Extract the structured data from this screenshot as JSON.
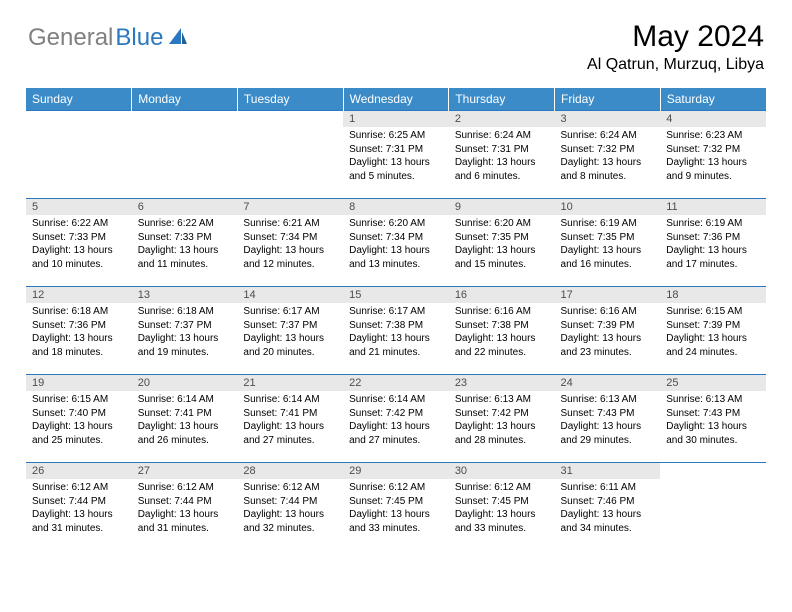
{
  "logo": {
    "gray": "General",
    "blue": "Blue"
  },
  "title": "May 2024",
  "location": "Al Qatrun, Murzuq, Libya",
  "colors": {
    "header_bg": "#3b8bc9",
    "border": "#2a78bf",
    "daynum_bg": "#e8e8e8",
    "logo_gray": "#808080",
    "logo_blue": "#2a78bf"
  },
  "weekdays": [
    "Sunday",
    "Monday",
    "Tuesday",
    "Wednesday",
    "Thursday",
    "Friday",
    "Saturday"
  ],
  "weeks": [
    [
      {
        "n": "",
        "sr": "",
        "ss": "",
        "dl": "",
        "empty": true
      },
      {
        "n": "",
        "sr": "",
        "ss": "",
        "dl": "",
        "empty": true
      },
      {
        "n": "",
        "sr": "",
        "ss": "",
        "dl": "",
        "empty": true
      },
      {
        "n": "1",
        "sr": "Sunrise: 6:25 AM",
        "ss": "Sunset: 7:31 PM",
        "dl": "Daylight: 13 hours and 5 minutes."
      },
      {
        "n": "2",
        "sr": "Sunrise: 6:24 AM",
        "ss": "Sunset: 7:31 PM",
        "dl": "Daylight: 13 hours and 6 minutes."
      },
      {
        "n": "3",
        "sr": "Sunrise: 6:24 AM",
        "ss": "Sunset: 7:32 PM",
        "dl": "Daylight: 13 hours and 8 minutes."
      },
      {
        "n": "4",
        "sr": "Sunrise: 6:23 AM",
        "ss": "Sunset: 7:32 PM",
        "dl": "Daylight: 13 hours and 9 minutes."
      }
    ],
    [
      {
        "n": "5",
        "sr": "Sunrise: 6:22 AM",
        "ss": "Sunset: 7:33 PM",
        "dl": "Daylight: 13 hours and 10 minutes."
      },
      {
        "n": "6",
        "sr": "Sunrise: 6:22 AM",
        "ss": "Sunset: 7:33 PM",
        "dl": "Daylight: 13 hours and 11 minutes."
      },
      {
        "n": "7",
        "sr": "Sunrise: 6:21 AM",
        "ss": "Sunset: 7:34 PM",
        "dl": "Daylight: 13 hours and 12 minutes."
      },
      {
        "n": "8",
        "sr": "Sunrise: 6:20 AM",
        "ss": "Sunset: 7:34 PM",
        "dl": "Daylight: 13 hours and 13 minutes."
      },
      {
        "n": "9",
        "sr": "Sunrise: 6:20 AM",
        "ss": "Sunset: 7:35 PM",
        "dl": "Daylight: 13 hours and 15 minutes."
      },
      {
        "n": "10",
        "sr": "Sunrise: 6:19 AM",
        "ss": "Sunset: 7:35 PM",
        "dl": "Daylight: 13 hours and 16 minutes."
      },
      {
        "n": "11",
        "sr": "Sunrise: 6:19 AM",
        "ss": "Sunset: 7:36 PM",
        "dl": "Daylight: 13 hours and 17 minutes."
      }
    ],
    [
      {
        "n": "12",
        "sr": "Sunrise: 6:18 AM",
        "ss": "Sunset: 7:36 PM",
        "dl": "Daylight: 13 hours and 18 minutes."
      },
      {
        "n": "13",
        "sr": "Sunrise: 6:18 AM",
        "ss": "Sunset: 7:37 PM",
        "dl": "Daylight: 13 hours and 19 minutes."
      },
      {
        "n": "14",
        "sr": "Sunrise: 6:17 AM",
        "ss": "Sunset: 7:37 PM",
        "dl": "Daylight: 13 hours and 20 minutes."
      },
      {
        "n": "15",
        "sr": "Sunrise: 6:17 AM",
        "ss": "Sunset: 7:38 PM",
        "dl": "Daylight: 13 hours and 21 minutes."
      },
      {
        "n": "16",
        "sr": "Sunrise: 6:16 AM",
        "ss": "Sunset: 7:38 PM",
        "dl": "Daylight: 13 hours and 22 minutes."
      },
      {
        "n": "17",
        "sr": "Sunrise: 6:16 AM",
        "ss": "Sunset: 7:39 PM",
        "dl": "Daylight: 13 hours and 23 minutes."
      },
      {
        "n": "18",
        "sr": "Sunrise: 6:15 AM",
        "ss": "Sunset: 7:39 PM",
        "dl": "Daylight: 13 hours and 24 minutes."
      }
    ],
    [
      {
        "n": "19",
        "sr": "Sunrise: 6:15 AM",
        "ss": "Sunset: 7:40 PM",
        "dl": "Daylight: 13 hours and 25 minutes."
      },
      {
        "n": "20",
        "sr": "Sunrise: 6:14 AM",
        "ss": "Sunset: 7:41 PM",
        "dl": "Daylight: 13 hours and 26 minutes."
      },
      {
        "n": "21",
        "sr": "Sunrise: 6:14 AM",
        "ss": "Sunset: 7:41 PM",
        "dl": "Daylight: 13 hours and 27 minutes."
      },
      {
        "n": "22",
        "sr": "Sunrise: 6:14 AM",
        "ss": "Sunset: 7:42 PM",
        "dl": "Daylight: 13 hours and 27 minutes."
      },
      {
        "n": "23",
        "sr": "Sunrise: 6:13 AM",
        "ss": "Sunset: 7:42 PM",
        "dl": "Daylight: 13 hours and 28 minutes."
      },
      {
        "n": "24",
        "sr": "Sunrise: 6:13 AM",
        "ss": "Sunset: 7:43 PM",
        "dl": "Daylight: 13 hours and 29 minutes."
      },
      {
        "n": "25",
        "sr": "Sunrise: 6:13 AM",
        "ss": "Sunset: 7:43 PM",
        "dl": "Daylight: 13 hours and 30 minutes."
      }
    ],
    [
      {
        "n": "26",
        "sr": "Sunrise: 6:12 AM",
        "ss": "Sunset: 7:44 PM",
        "dl": "Daylight: 13 hours and 31 minutes."
      },
      {
        "n": "27",
        "sr": "Sunrise: 6:12 AM",
        "ss": "Sunset: 7:44 PM",
        "dl": "Daylight: 13 hours and 31 minutes."
      },
      {
        "n": "28",
        "sr": "Sunrise: 6:12 AM",
        "ss": "Sunset: 7:44 PM",
        "dl": "Daylight: 13 hours and 32 minutes."
      },
      {
        "n": "29",
        "sr": "Sunrise: 6:12 AM",
        "ss": "Sunset: 7:45 PM",
        "dl": "Daylight: 13 hours and 33 minutes."
      },
      {
        "n": "30",
        "sr": "Sunrise: 6:12 AM",
        "ss": "Sunset: 7:45 PM",
        "dl": "Daylight: 13 hours and 33 minutes."
      },
      {
        "n": "31",
        "sr": "Sunrise: 6:11 AM",
        "ss": "Sunset: 7:46 PM",
        "dl": "Daylight: 13 hours and 34 minutes."
      },
      {
        "n": "",
        "sr": "",
        "ss": "",
        "dl": "",
        "empty": true
      }
    ]
  ]
}
